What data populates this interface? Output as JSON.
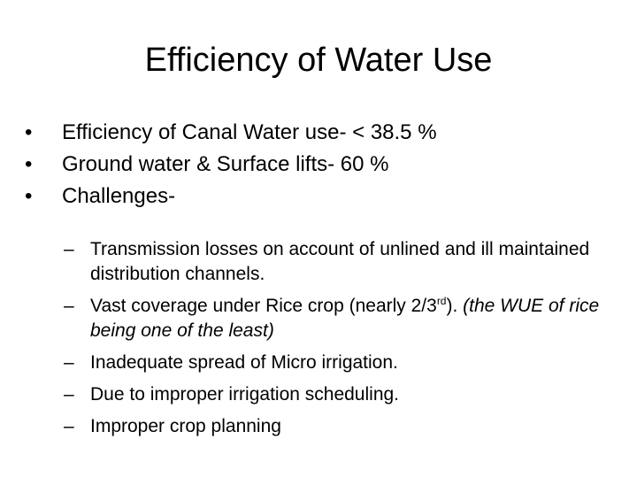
{
  "title": "Efficiency of Water Use",
  "bullet_marker": "•",
  "sub_marker": "–",
  "bullets": [
    "Efficiency of Canal Water use- < 38.5 %",
    "Ground water & Surface lifts- 60 %",
    "Challenges-"
  ],
  "subbullets": {
    "item1": "Transmission losses on account of unlined and ill maintained distribution channels.",
    "item2": {
      "text_before": "Vast coverage under Rice crop (nearly 2/3",
      "superscript": "rd",
      "text_after": ").",
      "italic_note": "(the WUE of rice being one of the least)"
    },
    "item3": "Inadequate spread of Micro irrigation.",
    "item4": "Due to improper irrigation scheduling.",
    "item5": "Improper crop planning"
  }
}
